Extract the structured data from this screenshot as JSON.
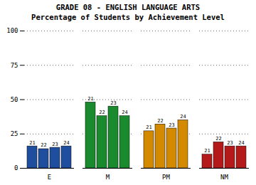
{
  "chart_data": {
    "type": "bar",
    "title": "GRADE 08 - ENGLISH LANGUAGE ARTS",
    "subtitle": "Percentage of Students by Achievement Level",
    "categories": [
      "E",
      "M",
      "PM",
      "NM"
    ],
    "series": [
      {
        "name": "21",
        "values": [
          16,
          48,
          27,
          10
        ]
      },
      {
        "name": "22",
        "values": [
          14,
          38,
          32,
          19
        ]
      },
      {
        "name": "23",
        "values": [
          15,
          45,
          29,
          16
        ]
      },
      {
        "name": "24",
        "values": [
          16,
          38,
          35,
          16
        ]
      }
    ],
    "colors": [
      "#1f4e9e",
      "#1a8a2e",
      "#d48a00",
      "#b51a1a"
    ],
    "ylim": [
      0,
      100
    ],
    "yticks": [
      0,
      25,
      50,
      75,
      100
    ],
    "grid": true
  }
}
